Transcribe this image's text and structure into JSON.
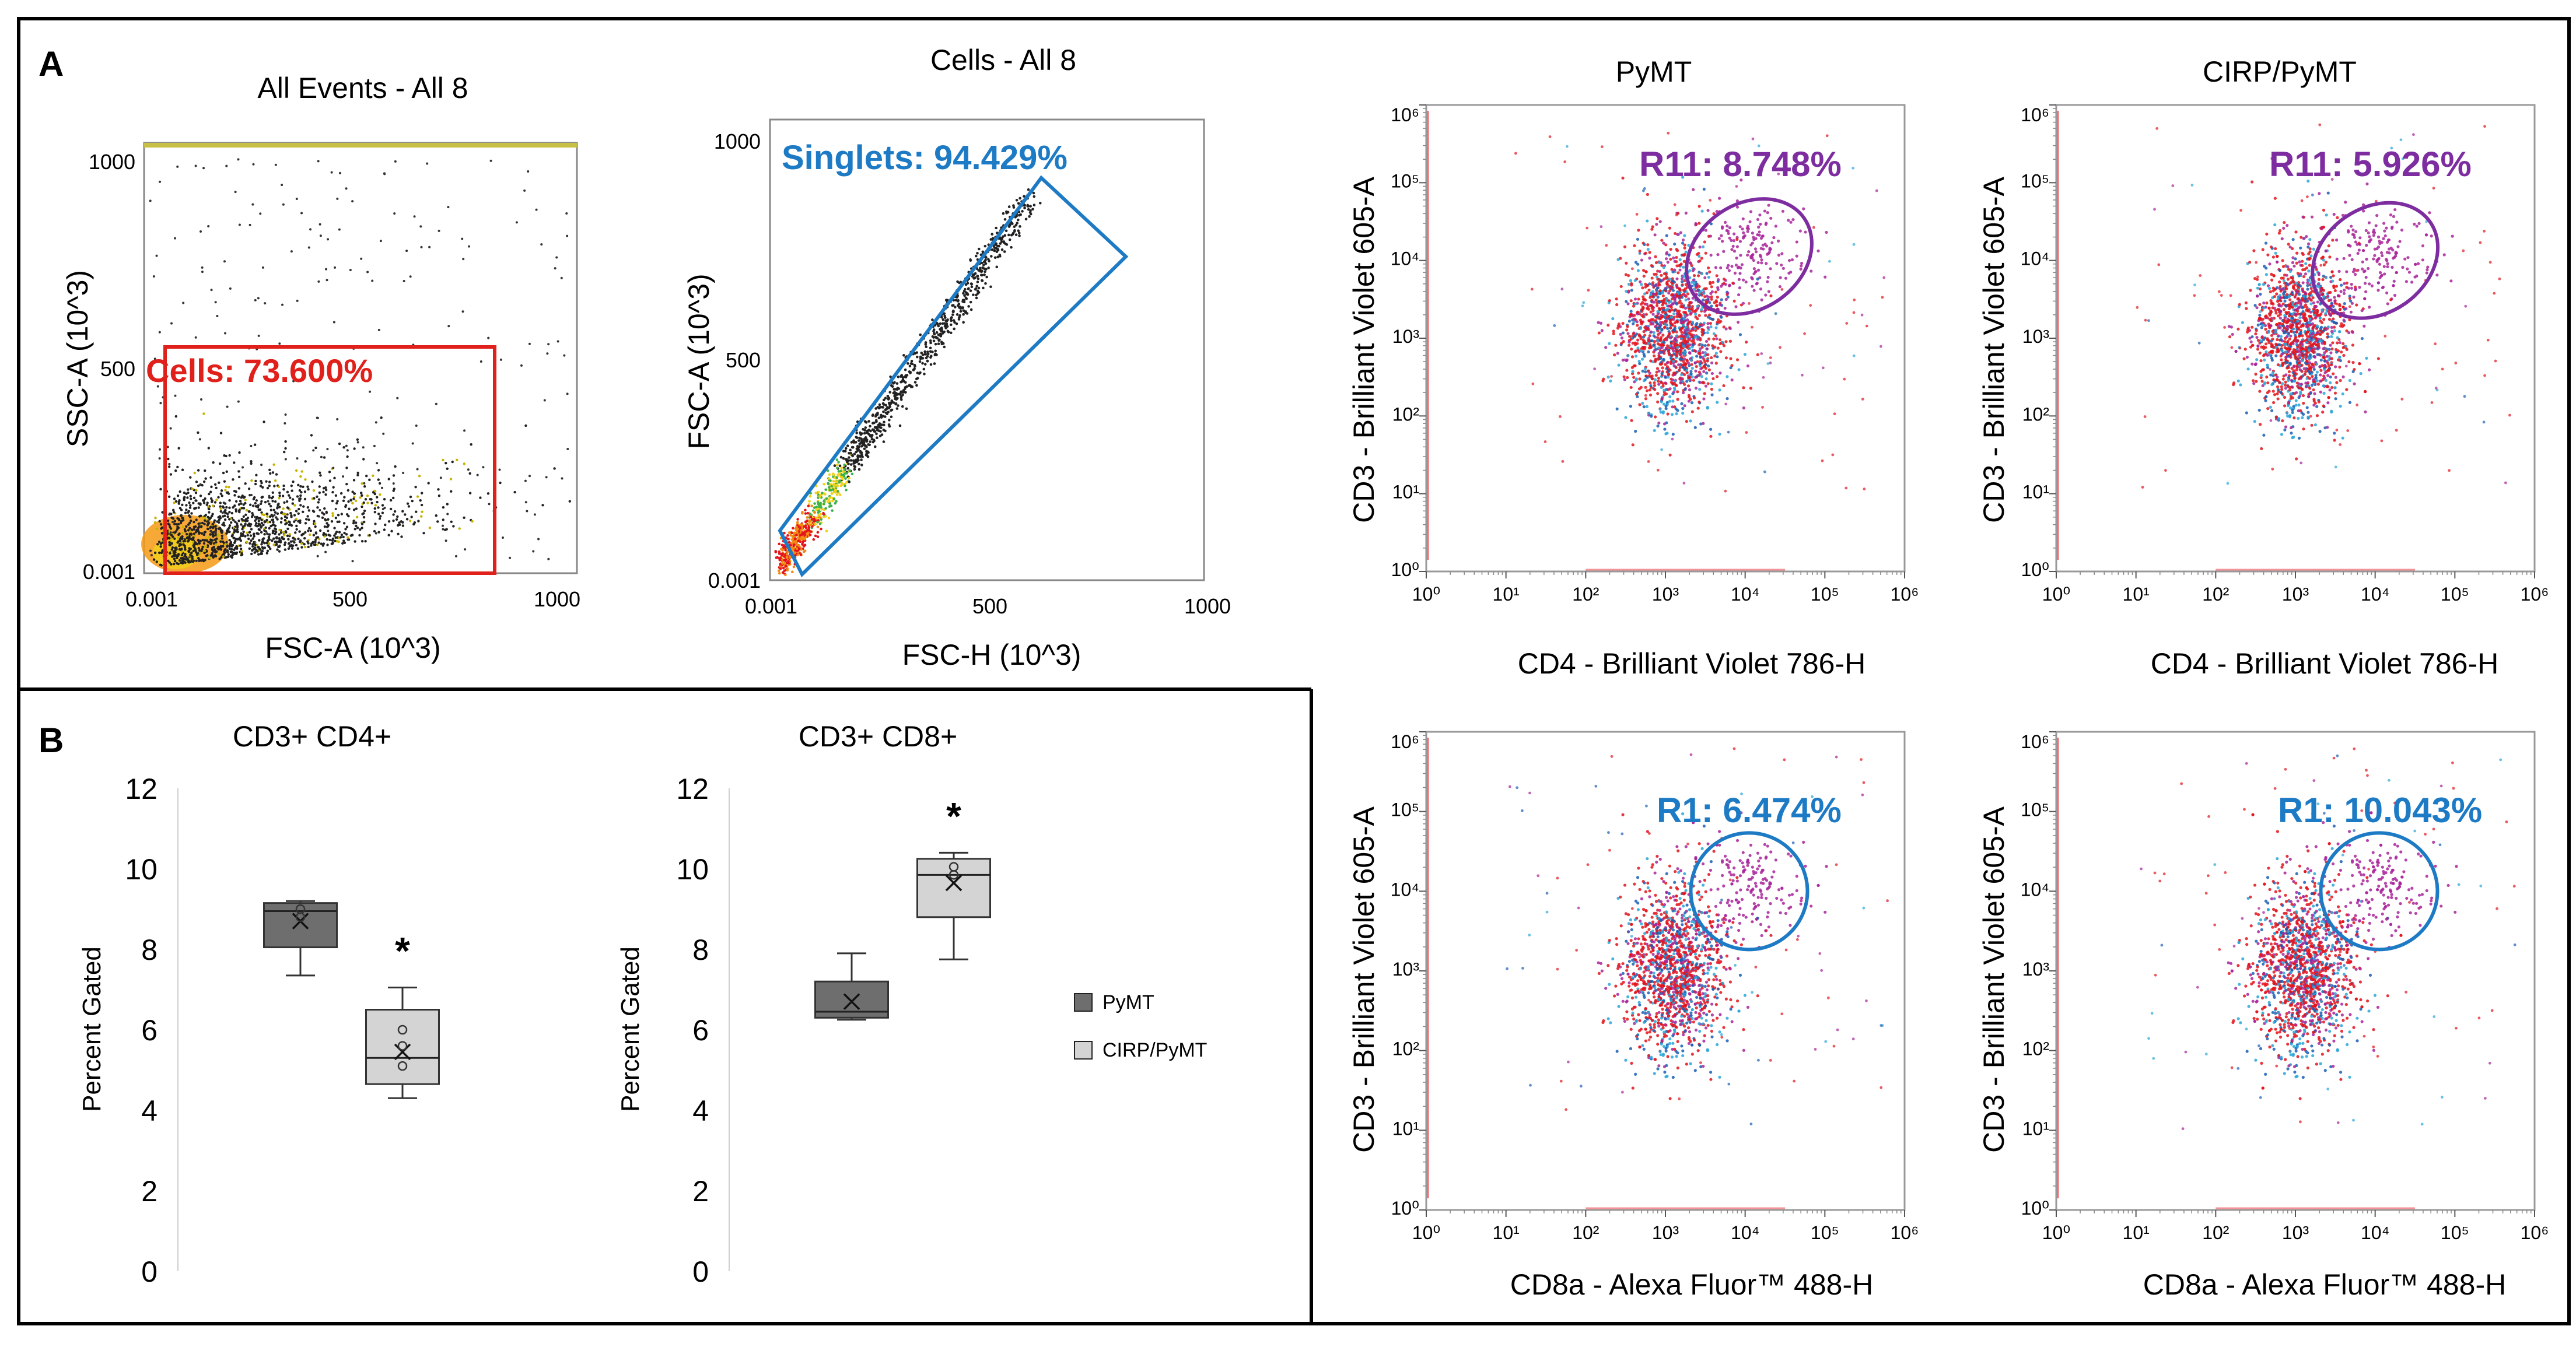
{
  "figure": {
    "panel_a_label": "A",
    "panel_b_label": "B"
  },
  "colors": {
    "cells_gate": "#e0201a",
    "singlets_gate": "#1d7ac4",
    "r11_gate": "#7d2da0",
    "r1_gate": "#1d7ac4",
    "pymt_box": "#6e6e6e",
    "cirp_box": "#d4d4d4",
    "dot_red": "#e3141c",
    "dot_blue": "#1a5fb4",
    "dot_magenta": "#a8249a",
    "dot_cyan": "#2aa6d8",
    "density_core": "#f59a14"
  },
  "chart_data": [
    {
      "id": "all-events",
      "type": "scatter",
      "title": "All Events - All 8",
      "xlabel": "FSC-A (10^3)",
      "ylabel": "SSC-A (10^3)",
      "xlim": [
        0.001,
        1000
      ],
      "ylim": [
        0.001,
        1000
      ],
      "xticks": [
        "0.001",
        "500",
        "1000"
      ],
      "yticks": [
        "0.001",
        "500",
        "1000"
      ],
      "gate": {
        "name": "Cells",
        "label": "Cells: 73.600%",
        "percent": 73.6,
        "shape": "rectangle",
        "x_range": [
          40,
          840
        ],
        "y_range": [
          0.001,
          580
        ]
      }
    },
    {
      "id": "cells",
      "type": "scatter",
      "title": "Cells - All 8",
      "xlabel": "FSC-H (10^3)",
      "ylabel": "FSC-A (10^3)",
      "xlim": [
        0.001,
        1000
      ],
      "ylim": [
        0.001,
        1000
      ],
      "xticks": [
        "0.001",
        "500",
        "1000"
      ],
      "yticks": [
        "0.001",
        "500",
        "1000"
      ],
      "gate": {
        "name": "Singlets",
        "label": "Singlets: 94.429%",
        "percent": 94.429,
        "shape": "polygon"
      }
    },
    {
      "id": "pymt-cd4",
      "type": "scatter",
      "title": "PyMT",
      "xlabel": "CD4 - Brilliant Violet 786-H",
      "ylabel": "CD3 - Brilliant Violet 605-A",
      "scale": "log",
      "xticks": [
        "10⁰",
        "10¹",
        "10²",
        "10³",
        "10⁴",
        "10⁵",
        "10⁶"
      ],
      "yticks": [
        "10⁰",
        "10¹",
        "10²",
        "10³",
        "10⁴",
        "10⁵",
        "10⁶"
      ],
      "gate": {
        "name": "R11",
        "label": "R11: 8.748%",
        "percent": 8.748,
        "shape": "ellipse",
        "center_log": [
          4.05,
          4.05
        ]
      }
    },
    {
      "id": "cirp-cd4",
      "type": "scatter",
      "title": "CIRP/PyMT",
      "xlabel": "CD4 - Brilliant Violet 786-H",
      "ylabel": "CD3 - Brilliant Violet 605-A",
      "scale": "log",
      "xticks": [
        "10⁰",
        "10¹",
        "10²",
        "10³",
        "10⁴",
        "10⁵",
        "10⁶"
      ],
      "yticks": [
        "10⁰",
        "10¹",
        "10²",
        "10³",
        "10⁴",
        "10⁵",
        "10⁶"
      ],
      "gate": {
        "name": "R11",
        "label": "R11: 5.926%",
        "percent": 5.926,
        "shape": "ellipse",
        "center_log": [
          4.0,
          4.0
        ]
      }
    },
    {
      "id": "pymt-cd8",
      "type": "scatter",
      "title": "",
      "xlabel": "CD8a - Alexa Fluor™ 488-H",
      "ylabel": "CD3 - Brilliant Violet 605-A",
      "scale": "log",
      "xticks": [
        "10⁰",
        "10¹",
        "10²",
        "10³",
        "10⁴",
        "10⁵",
        "10⁶"
      ],
      "yticks": [
        "10⁰",
        "10¹",
        "10²",
        "10³",
        "10⁴",
        "10⁵",
        "10⁶"
      ],
      "gate": {
        "name": "R1",
        "label": "R1: 6.474%",
        "percent": 6.474,
        "shape": "circle",
        "center_log": [
          4.05,
          4.0
        ]
      }
    },
    {
      "id": "cirp-cd8",
      "type": "scatter",
      "title": "",
      "xlabel": "CD8a - Alexa Fluor™ 488-H",
      "ylabel": "CD3 - Brilliant Violet 605-A",
      "scale": "log",
      "xticks": [
        "10⁰",
        "10¹",
        "10²",
        "10³",
        "10⁴",
        "10⁵",
        "10⁶"
      ],
      "yticks": [
        "10⁰",
        "10¹",
        "10²",
        "10³",
        "10⁴",
        "10⁵",
        "10⁶"
      ],
      "gate": {
        "name": "R1",
        "label": "R1: 10.043%",
        "percent": 10.043,
        "shape": "circle",
        "center_log": [
          4.05,
          4.0
        ]
      }
    },
    {
      "id": "box-cd4",
      "type": "box",
      "title": "CD3+ CD4+",
      "ylabel": "Percent Gated",
      "ylim": [
        0,
        12
      ],
      "yticks": [
        "0",
        "2",
        "4",
        "6",
        "8",
        "10",
        "12"
      ],
      "significance": "*",
      "series": [
        {
          "name": "PyMT",
          "min": 7.35,
          "q1": 8.05,
          "median": 8.95,
          "q3": 9.15,
          "max": 9.2,
          "mean": 8.7,
          "points": [
            9.0,
            8.8
          ]
        },
        {
          "name": "CIRP/PyMT",
          "min": 4.3,
          "q1": 4.65,
          "median": 5.3,
          "q3": 6.5,
          "max": 7.05,
          "mean": 5.45,
          "points": [
            6.0,
            5.6,
            5.1
          ]
        }
      ]
    },
    {
      "id": "box-cd8",
      "type": "box",
      "title": "CD3+ CD8+",
      "ylabel": "Percent Gated",
      "ylim": [
        0,
        12
      ],
      "yticks": [
        "0",
        "2",
        "4",
        "6",
        "8",
        "10",
        "12"
      ],
      "significance": "*",
      "series": [
        {
          "name": "PyMT",
          "min": 6.25,
          "q1": 6.3,
          "median": 6.45,
          "q3": 7.2,
          "max": 7.9,
          "mean": 6.7,
          "points": []
        },
        {
          "name": "CIRP/PyMT",
          "min": 7.75,
          "q1": 8.8,
          "median": 9.85,
          "q3": 10.25,
          "max": 10.4,
          "mean": 9.65,
          "points": [
            10.05,
            9.85
          ]
        }
      ]
    }
  ],
  "legend": {
    "items": [
      {
        "label": "PyMT",
        "color": "#6e6e6e"
      },
      {
        "label": "CIRP/PyMT",
        "color": "#d4d4d4"
      }
    ]
  }
}
